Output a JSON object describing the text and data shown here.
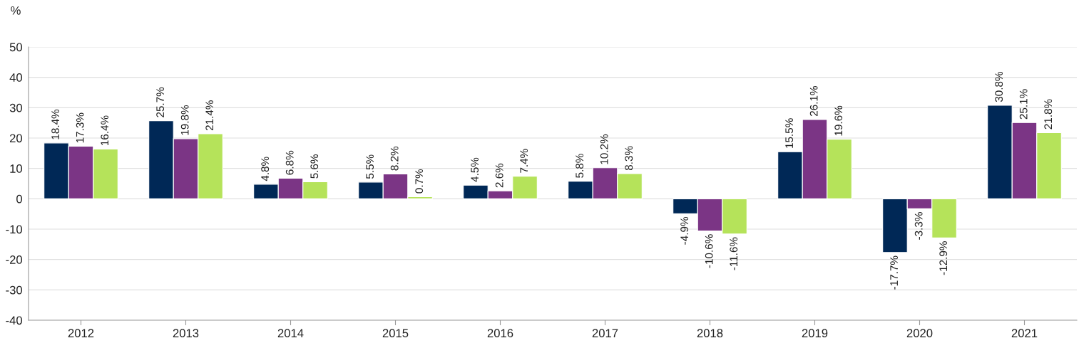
{
  "chart_data": {
    "type": "bar",
    "ylabel": "%",
    "categories": [
      "2012",
      "2013",
      "2014",
      "2015",
      "2016",
      "2017",
      "2018",
      "2019",
      "2020",
      "2021"
    ],
    "series": [
      {
        "color": "#002856",
        "values": [
          18.4,
          25.7,
          4.8,
          5.5,
          4.5,
          5.8,
          -4.9,
          15.5,
          -17.7,
          30.8
        ],
        "value_labels": [
          "18.4%",
          "25.7%",
          "4.8%",
          "5.5%",
          "4.5%",
          "5.8%",
          "-4.9%",
          "15.5%",
          "-17.7%",
          "30.8%"
        ]
      },
      {
        "color": "#7b3585",
        "values": [
          17.3,
          19.8,
          6.8,
          8.2,
          2.6,
          10.2,
          -10.6,
          26.1,
          -3.3,
          25.1
        ],
        "value_labels": [
          "17.3%",
          "19.8%",
          "6.8%",
          "8.2%",
          "2.6%",
          "10.2%",
          "-10.6%",
          "26.1%",
          "-3.3%",
          "25.1%"
        ]
      },
      {
        "color": "#b5e35a",
        "values": [
          16.4,
          21.4,
          5.6,
          0.7,
          7.4,
          8.3,
          -11.6,
          19.6,
          -12.9,
          21.8
        ],
        "value_labels": [
          "16.4%",
          "21.4%",
          "5.6%",
          "0.7%",
          "7.4%",
          "8.3%",
          "-11.6%",
          "19.6%",
          "-12.9%",
          "21.8%"
        ]
      }
    ],
    "ylim": [
      -40,
      50
    ],
    "yticks": [
      -40,
      -30,
      -20,
      -10,
      0,
      10,
      20,
      30,
      40,
      50
    ],
    "grid": "y",
    "legend": false
  }
}
